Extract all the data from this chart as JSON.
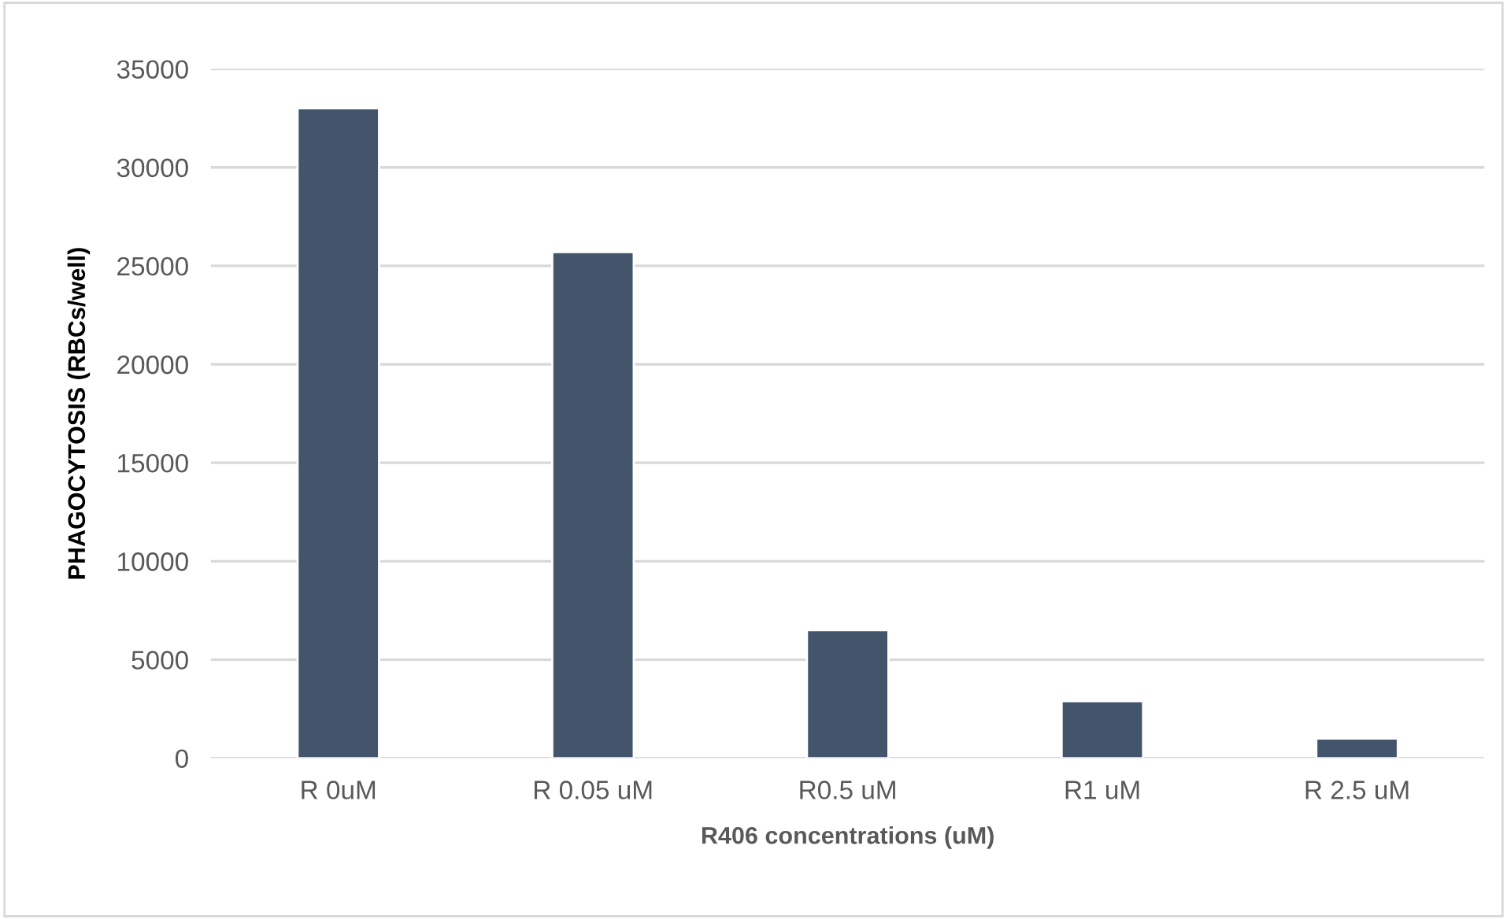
{
  "chart_data": {
    "type": "bar",
    "xlabel": "R406 concentrations (uM)",
    "ylabel": "PHAGOCYTOSIS (RBCs/well)",
    "categories": [
      "R 0uM",
      "R 0.05 uM",
      "R0.5 uM",
      "R1 uM",
      "R 2.5 uM"
    ],
    "values": [
      33000,
      25700,
      6500,
      2900,
      1000
    ],
    "color": "#44546a",
    "ylim": [
      0,
      35000
    ],
    "yticks": [
      0,
      5000,
      10000,
      15000,
      20000,
      25000,
      30000,
      35000
    ],
    "grid": "y"
  }
}
